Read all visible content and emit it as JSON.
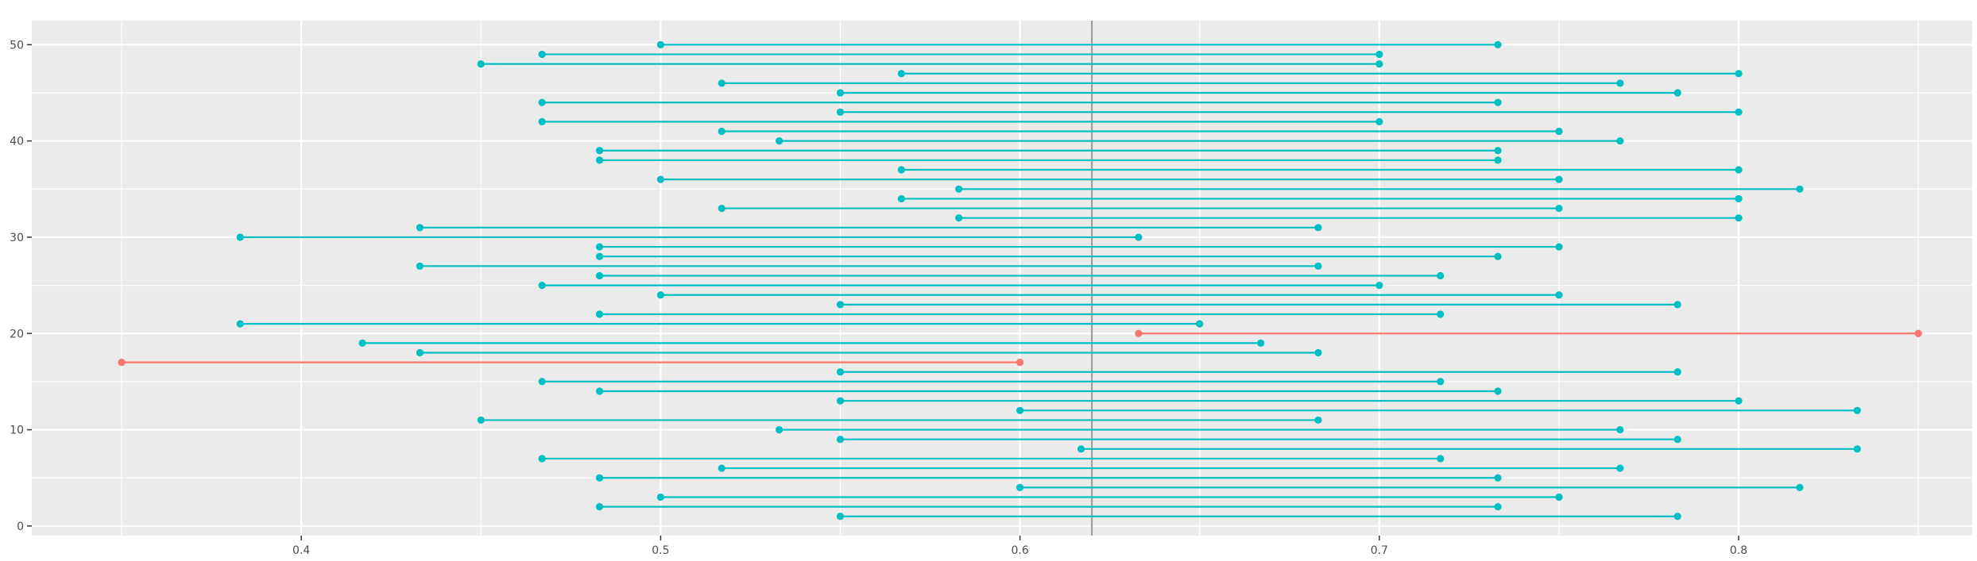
{
  "chart_data": {
    "type": "dumbbell",
    "title": "",
    "xlabel": "",
    "ylabel": "",
    "xlim": [
      0.325,
      0.865
    ],
    "ylim": [
      -1,
      52.5
    ],
    "x_ticks": [
      0.4,
      0.5,
      0.6,
      0.7,
      0.8
    ],
    "x_tick_labels": [
      "0.4",
      "0.5",
      "0.6",
      "0.7",
      "0.8"
    ],
    "y_ticks": [
      0,
      10,
      20,
      30,
      40,
      50
    ],
    "y_tick_labels": [
      "0",
      "10",
      "20",
      "30",
      "40",
      "50"
    ],
    "grid": true,
    "reference_line_x": 0.62,
    "colors": {
      "default": "#00bfc4",
      "highlight": "#f8766d",
      "reference": "#999999",
      "panel": "#ebebeb",
      "grid": "#ffffff"
    },
    "intervals": [
      {
        "y": 1,
        "x_start": 0.55,
        "x_end": 0.783,
        "color": "default"
      },
      {
        "y": 2,
        "x_start": 0.483,
        "x_end": 0.733,
        "color": "default"
      },
      {
        "y": 3,
        "x_start": 0.5,
        "x_end": 0.75,
        "color": "default"
      },
      {
        "y": 4,
        "x_start": 0.6,
        "x_end": 0.817,
        "color": "default"
      },
      {
        "y": 5,
        "x_start": 0.483,
        "x_end": 0.733,
        "color": "default"
      },
      {
        "y": 6,
        "x_start": 0.517,
        "x_end": 0.767,
        "color": "default"
      },
      {
        "y": 7,
        "x_start": 0.467,
        "x_end": 0.717,
        "color": "default"
      },
      {
        "y": 8,
        "x_start": 0.617,
        "x_end": 0.833,
        "color": "default"
      },
      {
        "y": 9,
        "x_start": 0.55,
        "x_end": 0.783,
        "color": "default"
      },
      {
        "y": 10,
        "x_start": 0.533,
        "x_end": 0.767,
        "color": "default"
      },
      {
        "y": 11,
        "x_start": 0.45,
        "x_end": 0.683,
        "color": "default"
      },
      {
        "y": 12,
        "x_start": 0.6,
        "x_end": 0.833,
        "color": "default"
      },
      {
        "y": 13,
        "x_start": 0.55,
        "x_end": 0.8,
        "color": "default"
      },
      {
        "y": 14,
        "x_start": 0.483,
        "x_end": 0.733,
        "color": "default"
      },
      {
        "y": 15,
        "x_start": 0.467,
        "x_end": 0.717,
        "color": "default"
      },
      {
        "y": 16,
        "x_start": 0.55,
        "x_end": 0.783,
        "color": "default"
      },
      {
        "y": 17,
        "x_start": 0.35,
        "x_end": 0.6,
        "color": "highlight"
      },
      {
        "y": 18,
        "x_start": 0.433,
        "x_end": 0.683,
        "color": "default"
      },
      {
        "y": 19,
        "x_start": 0.417,
        "x_end": 0.667,
        "color": "default"
      },
      {
        "y": 20,
        "x_start": 0.633,
        "x_end": 0.85,
        "color": "highlight"
      },
      {
        "y": 21,
        "x_start": 0.383,
        "x_end": 0.65,
        "color": "default"
      },
      {
        "y": 22,
        "x_start": 0.483,
        "x_end": 0.717,
        "color": "default"
      },
      {
        "y": 23,
        "x_start": 0.55,
        "x_end": 0.783,
        "color": "default"
      },
      {
        "y": 24,
        "x_start": 0.5,
        "x_end": 0.75,
        "color": "default"
      },
      {
        "y": 25,
        "x_start": 0.467,
        "x_end": 0.7,
        "color": "default"
      },
      {
        "y": 26,
        "x_start": 0.483,
        "x_end": 0.717,
        "color": "default"
      },
      {
        "y": 27,
        "x_start": 0.433,
        "x_end": 0.683,
        "color": "default"
      },
      {
        "y": 28,
        "x_start": 0.483,
        "x_end": 0.733,
        "color": "default"
      },
      {
        "y": 29,
        "x_start": 0.483,
        "x_end": 0.75,
        "color": "default"
      },
      {
        "y": 30,
        "x_start": 0.383,
        "x_end": 0.633,
        "color": "default"
      },
      {
        "y": 31,
        "x_start": 0.433,
        "x_end": 0.683,
        "color": "default"
      },
      {
        "y": 32,
        "x_start": 0.583,
        "x_end": 0.8,
        "color": "default"
      },
      {
        "y": 33,
        "x_start": 0.517,
        "x_end": 0.75,
        "color": "default"
      },
      {
        "y": 34,
        "x_start": 0.567,
        "x_end": 0.8,
        "color": "default"
      },
      {
        "y": 35,
        "x_start": 0.583,
        "x_end": 0.817,
        "color": "default"
      },
      {
        "y": 36,
        "x_start": 0.5,
        "x_end": 0.75,
        "color": "default"
      },
      {
        "y": 37,
        "x_start": 0.567,
        "x_end": 0.8,
        "color": "default"
      },
      {
        "y": 38,
        "x_start": 0.483,
        "x_end": 0.733,
        "color": "default"
      },
      {
        "y": 39,
        "x_start": 0.483,
        "x_end": 0.733,
        "color": "default"
      },
      {
        "y": 40,
        "x_start": 0.533,
        "x_end": 0.767,
        "color": "default"
      },
      {
        "y": 41,
        "x_start": 0.517,
        "x_end": 0.75,
        "color": "default"
      },
      {
        "y": 42,
        "x_start": 0.467,
        "x_end": 0.7,
        "color": "default"
      },
      {
        "y": 43,
        "x_start": 0.55,
        "x_end": 0.8,
        "color": "default"
      },
      {
        "y": 44,
        "x_start": 0.467,
        "x_end": 0.733,
        "color": "default"
      },
      {
        "y": 45,
        "x_start": 0.55,
        "x_end": 0.783,
        "color": "default"
      },
      {
        "y": 46,
        "x_start": 0.517,
        "x_end": 0.767,
        "color": "default"
      },
      {
        "y": 47,
        "x_start": 0.567,
        "x_end": 0.8,
        "color": "default"
      },
      {
        "y": 48,
        "x_start": 0.45,
        "x_end": 0.7,
        "color": "default"
      },
      {
        "y": 49,
        "x_start": 0.467,
        "x_end": 0.7,
        "color": "default"
      },
      {
        "y": 50,
        "x_start": 0.5,
        "x_end": 0.733,
        "color": "default"
      }
    ]
  }
}
